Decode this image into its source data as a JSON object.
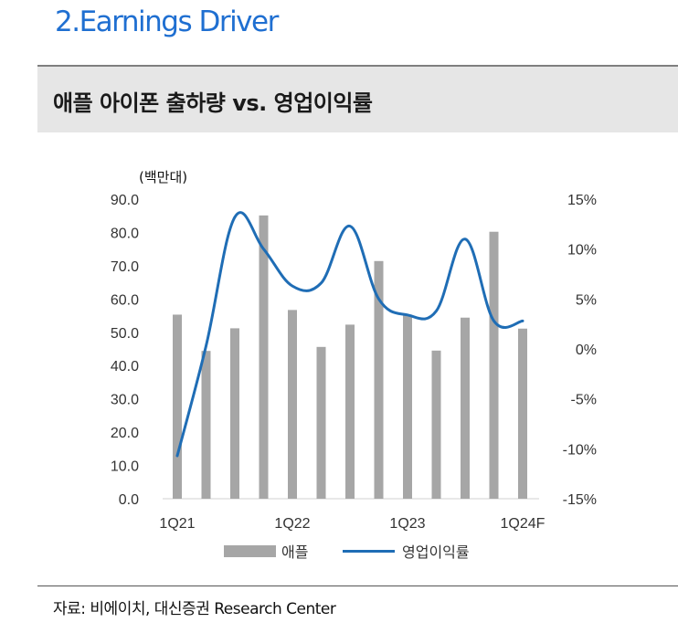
{
  "section_title": "2.Earnings Driver",
  "header_title": "애플 아이폰 출하량 vs. 영업이익률",
  "source_note": "자료: 비에이치, 대신증권 Research Center",
  "colors": {
    "bar": "#a6a6a6",
    "line": "#1f6db5",
    "title": "#1f6fd1"
  },
  "chart_data": {
    "type": "bar",
    "categories": [
      "1Q21",
      "2Q21",
      "3Q21",
      "4Q21",
      "1Q22",
      "2Q22",
      "3Q22",
      "4Q22",
      "1Q23",
      "2Q23",
      "3Q23",
      "4Q23",
      "1Q24F"
    ],
    "x_tick_labels": [
      "1Q21",
      "1Q22",
      "1Q23",
      "1Q24F"
    ],
    "y_unit_label": "(백만대)",
    "ylim": [
      0,
      90
    ],
    "yticks": [
      "0.0",
      "10.0",
      "20.0",
      "30.0",
      "40.0",
      "50.0",
      "60.0",
      "70.0",
      "80.0",
      "90.0"
    ],
    "y2lim": [
      -15,
      15
    ],
    "y2ticks": [
      "-15%",
      "-10%",
      "-5%",
      "0%",
      "5%",
      "10%",
      "15%"
    ],
    "grid": false,
    "legend_position": "bottom",
    "series": [
      {
        "name": "애플",
        "type": "bar",
        "axis": "left",
        "values": [
          55.3,
          44.4,
          51.2,
          85.1,
          56.7,
          45.6,
          52.3,
          71.4,
          55.3,
          44.5,
          54.4,
          80.2,
          51.1
        ]
      },
      {
        "name": "영업이익률",
        "type": "line",
        "axis": "right",
        "values": [
          -10.7,
          0.3,
          13.2,
          10.0,
          6.3,
          6.6,
          12.3,
          5.0,
          3.4,
          3.8,
          11.0,
          2.8,
          2.8
        ]
      }
    ]
  }
}
